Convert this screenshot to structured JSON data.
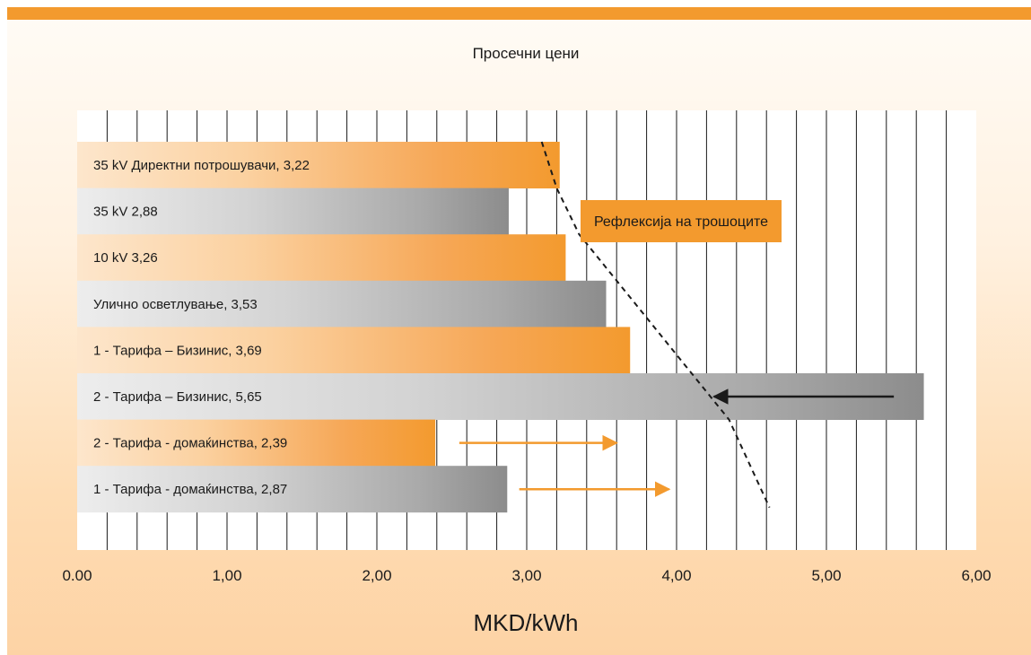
{
  "chart_data": {
    "type": "bar",
    "orientation": "horizontal",
    "title": "Просечни цени",
    "xlabel": "MKD/kWh",
    "ylabel": "",
    "xlim": [
      0,
      6
    ],
    "x_ticks": [
      "0.00",
      "1,00",
      "2,00",
      "3,00",
      "4,00",
      "5,00",
      "6,00"
    ],
    "grid": true,
    "categories": [
      "35 kV Директни потрошувачи, 3,22",
      "35 kV  2,88",
      "10 kV  3,26",
      "Улично осветлување, 3,53",
      "1 - Тарифа – Бизинис, 3,69",
      "2 - Тарифа – Бизинис, 5,65",
      "2 - Тарифа - домаќинства, 2,39",
      "1 - Тарифа - домаќинства, 2,87"
    ],
    "values": [
      3.22,
      2.88,
      3.26,
      3.53,
      3.69,
      5.65,
      2.39,
      2.87
    ],
    "bar_colors": [
      "orange",
      "gray",
      "orange",
      "gray",
      "orange",
      "gray",
      "orange",
      "gray"
    ],
    "annotations": [
      {
        "text": "Рефлексија на трошоците"
      }
    ],
    "arrows": [
      {
        "y": "2 - Тарифа – Бизинис, 5,65",
        "from": 5.45,
        "to": 4.25,
        "color": "#1a1a1a"
      },
      {
        "y": "2 - Тарифа - домаќинства, 2,39",
        "from": 2.55,
        "to": 3.6,
        "color": "#f39a2e"
      },
      {
        "y": "1 - Тарифа - домаќинства, 2,87",
        "from": 2.95,
        "to": 3.95,
        "color": "#f39a2e"
      }
    ],
    "curve": {
      "style": "dashed",
      "points": [
        [
          3.1,
          0.0
        ],
        [
          3.2,
          1.0
        ],
        [
          3.35,
          2.0
        ],
        [
          3.6,
          3.0
        ],
        [
          3.85,
          4.0
        ],
        [
          4.1,
          5.0
        ],
        [
          4.35,
          6.0
        ],
        [
          4.62,
          7.9
        ]
      ]
    }
  },
  "colors": {
    "accent": "#f39a2e",
    "orange_light": "#fde6cc",
    "gray_dark": "#8c8c8c",
    "gray_light": "#e8e8e8"
  }
}
